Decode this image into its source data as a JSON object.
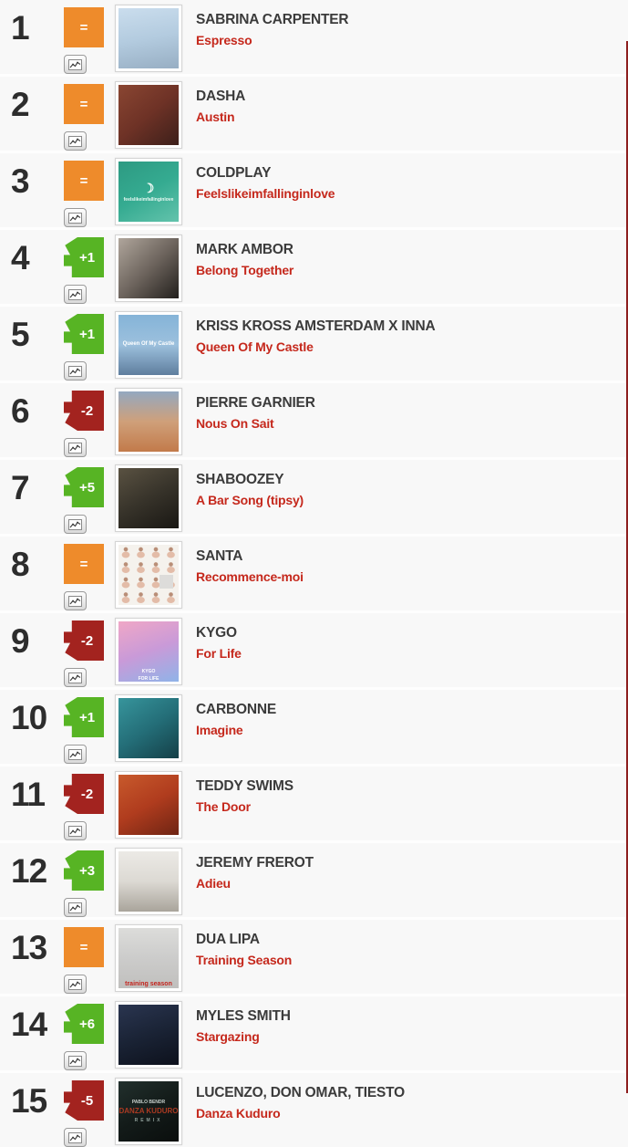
{
  "colors": {
    "badge_same": "#ee8b2b",
    "badge_up": "#57b424",
    "badge_down": "#a3231f",
    "title_red": "#c5281c",
    "artist_gray": "#3b3b3b",
    "rank_dark": "#2d2d2d",
    "row_bg": "#f8f8f8",
    "separator": "#fefefe",
    "edge_stripe": "#8e1f1f"
  },
  "icons": {
    "stats": "line-chart-icon"
  },
  "chart": {
    "entries": [
      {
        "rank": "1",
        "move": "=",
        "direction": "same",
        "artist": "SABRINA CARPENTER",
        "title": "Espresso",
        "art": {
          "deg": 170,
          "gradient": [
            "#cadded",
            "#b3cbdf",
            "#97aec3"
          ],
          "labels": []
        }
      },
      {
        "rank": "2",
        "move": "=",
        "direction": "same",
        "artist": "DASHA",
        "title": "Austin",
        "art": {
          "deg": 140,
          "gradient": [
            "#8a4632",
            "#6e3226",
            "#3c1f1a"
          ],
          "labels": []
        }
      },
      {
        "rank": "3",
        "move": "=",
        "direction": "same",
        "artist": "COLDPLAY",
        "title": "Feelslikeimfallinginlove",
        "art": {
          "deg": 150,
          "gradient": [
            "#2d9a82",
            "#35ab91",
            "#63c3ac"
          ],
          "labels": [
            {
              "text": "☽",
              "color": "#f4fcf8",
              "size": 14
            },
            {
              "text": "feelslikeimfallinginlove",
              "color": "#eaf9f3",
              "size": 5
            }
          ]
        }
      },
      {
        "rank": "4",
        "move": "+1",
        "direction": "up",
        "artist": "MARK AMBOR",
        "title": "Belong Together",
        "art": {
          "deg": 135,
          "gradient": [
            "#b0a69c",
            "#6e655e",
            "#221f1c"
          ],
          "labels": []
        }
      },
      {
        "rank": "5",
        "move": "+1",
        "direction": "up",
        "artist": "KRISS KROSS AMSTERDAM X INNA",
        "title": "Queen Of My Castle",
        "art": {
          "deg": 180,
          "gradient": [
            "#85b4d8",
            "#9cc0dd",
            "#5f7e9e"
          ],
          "labels": [
            {
              "text": "Queen Of My Castle",
              "color": "#ffffff",
              "size": 6
            }
          ]
        }
      },
      {
        "rank": "6",
        "move": "-2",
        "direction": "down",
        "artist": "PIERRE GARNIER",
        "title": "Nous On Sait",
        "art": {
          "deg": 180,
          "gradient": [
            "#93a8c0",
            "#cfa07a",
            "#c27a4a"
          ],
          "labels": []
        }
      },
      {
        "rank": "7",
        "move": "+5",
        "direction": "up",
        "artist": "SHABOOZEY",
        "title": "A Bar Song (tipsy)",
        "art": {
          "deg": 150,
          "gradient": [
            "#5a5242",
            "#37332a",
            "#191713"
          ],
          "labels": []
        }
      },
      {
        "rank": "8",
        "move": "=",
        "direction": "same",
        "artist": "SANTA",
        "title": "Recommence-moi",
        "art": {
          "variant": "grid",
          "deg": 180,
          "gradient": [
            "#f5f2ed",
            "#f5f2ed"
          ],
          "labels": []
        }
      },
      {
        "rank": "9",
        "move": "-2",
        "direction": "down",
        "artist": "KYGO",
        "title": "For Life",
        "art": {
          "deg": 160,
          "gradient": [
            "#f0a7c6",
            "#c99ad8",
            "#8fb3e8"
          ],
          "justify": "flex-end",
          "labels": [
            {
              "text": "KYGO",
              "color": "#ffffff",
              "size": 5
            },
            {
              "text": "FOR LIFE",
              "color": "#ffffff",
              "size": 5
            }
          ]
        }
      },
      {
        "rank": "10",
        "move": "+1",
        "direction": "up",
        "artist": "CARBONNE",
        "title": "Imagine",
        "art": {
          "deg": 145,
          "gradient": [
            "#37959c",
            "#246e78",
            "#143f47"
          ],
          "labels": []
        }
      },
      {
        "rank": "11",
        "move": "-2",
        "direction": "down",
        "artist": "TEDDY SWIMS",
        "title": "The Door",
        "art": {
          "deg": 150,
          "gradient": [
            "#c85a2c",
            "#b03c1e",
            "#6e2413"
          ],
          "labels": []
        }
      },
      {
        "rank": "12",
        "move": "+3",
        "direction": "up",
        "artist": "JEREMY FREROT",
        "title": "Adieu",
        "art": {
          "deg": 180,
          "gradient": [
            "#eceae6",
            "#dcd9d3",
            "#a9a49b"
          ],
          "labels": []
        }
      },
      {
        "rank": "13",
        "move": "=",
        "direction": "same",
        "artist": "DUA LIPA",
        "title": "Training Season",
        "art": {
          "deg": 180,
          "gradient": [
            "#dcdcda",
            "#cccccb",
            "#c0bfbd"
          ],
          "justify": "flex-end",
          "labels": [
            {
              "text": "training season",
              "color": "#c4241d",
              "size": 7
            }
          ]
        }
      },
      {
        "rank": "14",
        "move": "+6",
        "direction": "up",
        "artist": "MYLES SMITH",
        "title": "Stargazing",
        "art": {
          "deg": 160,
          "gradient": [
            "#2a3550",
            "#1a2335",
            "#0d111c"
          ],
          "labels": []
        }
      },
      {
        "rank": "15",
        "move": "-5",
        "direction": "down",
        "artist": "LUCENZO, DON OMAR, TIESTO",
        "title": "Danza Kuduro",
        "art": {
          "deg": 150,
          "gradient": [
            "#22302d",
            "#131b19",
            "#0a0e0d"
          ],
          "labels": [
            {
              "text": "PABLO BENDR",
              "color": "#c9d2ce",
              "size": 5
            },
            {
              "text": "DANZA KUDURO",
              "color": "#ab3a22",
              "size": 8
            },
            {
              "text": "REMIX",
              "color": "#8f9e99",
              "size": 5,
              "spacing": 3
            }
          ]
        }
      }
    ]
  }
}
